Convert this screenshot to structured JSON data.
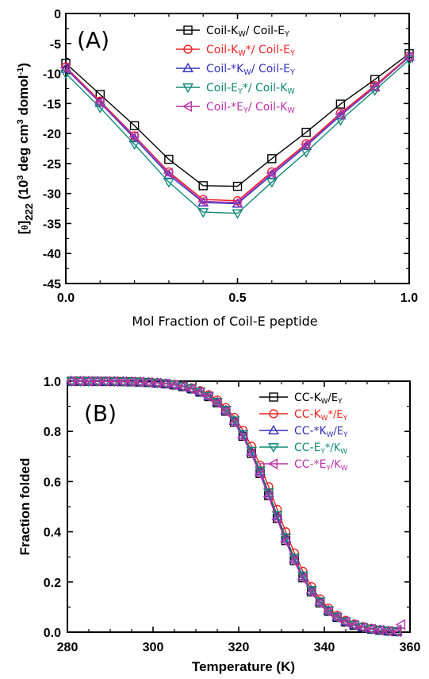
{
  "chart_data": [
    {
      "type": "line",
      "panel_label": "(A)",
      "xlabel": "Mol  Fraction of Coil-E peptide",
      "ylabel": "[θ]222 (10³ deg cm³ domol⁻¹)",
      "ylabel_parts": {
        "a": "[",
        "b": "θ",
        "c": "]",
        "sub": "222",
        "d": " (10",
        "sup1": "3",
        "e": " deg cm",
        "sup2": "3",
        "f": " domol",
        "sup3": "-1",
        "g": ")"
      },
      "xlim": [
        0.0,
        1.0
      ],
      "ylim": [
        -45,
        0
      ],
      "xticks": [
        0.0,
        0.5,
        1.0
      ],
      "xtick_labels": [
        "0.0",
        "0.5",
        "1.0"
      ],
      "yticks": [
        0,
        -5,
        -10,
        -15,
        -20,
        -25,
        -30,
        -35,
        -40,
        -45
      ],
      "ytick_labels": [
        "0",
        "-5",
        "-10",
        "-15",
        "-20",
        "-25",
        "-30",
        "-35",
        "-40",
        "-45"
      ],
      "legend_position": "top-right",
      "x": [
        0.0,
        0.1,
        0.2,
        0.3,
        0.4,
        0.5,
        0.6,
        0.7,
        0.8,
        0.9,
        1.0
      ],
      "series": [
        {
          "name": "Coil-Kw/ Coil-EY",
          "legend": {
            "a": "Coil-K",
            "sub1": "W",
            "b": "/ Coil-E",
            "sub2": "Y"
          },
          "color": "#000000",
          "marker": "square",
          "values": [
            -8.3,
            -13.5,
            -18.7,
            -24.3,
            -28.7,
            -28.8,
            -24.2,
            -19.8,
            -15.1,
            -11.0,
            -6.7
          ]
        },
        {
          "name": "Coil-Kw*/ Coil-EY",
          "legend": {
            "a": "Coil-K",
            "sub1": "W",
            "b": "*/ Coil-E",
            "sub2": "Y"
          },
          "color": "#ee2222",
          "marker": "circle",
          "values": [
            -8.9,
            -14.6,
            -20.4,
            -26.4,
            -31.0,
            -31.2,
            -26.4,
            -21.7,
            -16.6,
            -12.0,
            -7.1
          ]
        },
        {
          "name": "Coil-*Kw/ Coil-EY",
          "legend": {
            "a": "Coil-*K",
            "sub1": "W",
            "b": "/ Coil-E",
            "sub2": "Y"
          },
          "color": "#3333bb",
          "marker": "triangle-up",
          "values": [
            -9.2,
            -14.9,
            -20.8,
            -26.9,
            -31.5,
            -31.7,
            -26.9,
            -22.1,
            -17.0,
            -12.3,
            -7.2
          ]
        },
        {
          "name": "Coil-EY*/ Coil-Kw",
          "legend": {
            "a": "Coil-E",
            "sub1": "Y",
            "b": "*/ Coil-K",
            "sub2": "W"
          },
          "color": "#118877",
          "marker": "triangle-down",
          "values": [
            -10.0,
            -15.7,
            -21.8,
            -28.1,
            -33.1,
            -33.3,
            -28.1,
            -23.1,
            -17.8,
            -12.8,
            -7.7
          ]
        },
        {
          "name": "Coil-*EY/ Coil-Kw",
          "legend": {
            "a": "Coil-*E",
            "sub1": "Y",
            "b": "/ Coil-K",
            "sub2": "W"
          },
          "color": "#bb33aa",
          "marker": "triangle-left",
          "values": [
            -9.0,
            -14.8,
            -20.5,
            -26.6,
            -31.3,
            -31.5,
            -26.6,
            -21.9,
            -16.8,
            -12.2,
            -7.3
          ]
        }
      ]
    },
    {
      "type": "line",
      "panel_label": "(B)",
      "xlabel": "Temperature (K)",
      "ylabel": "Fraction folded",
      "xlim": [
        280,
        360
      ],
      "ylim": [
        0.0,
        1.0
      ],
      "xticks": [
        280,
        300,
        320,
        340,
        360
      ],
      "xtick_labels": [
        "280",
        "300",
        "320",
        "340",
        "360"
      ],
      "yticks": [
        0.0,
        0.2,
        0.4,
        0.6,
        0.8,
        1.0
      ],
      "ytick_labels": [
        "0.0",
        "0.2",
        "0.4",
        "0.6",
        "0.8",
        "1.0"
      ],
      "legend_position": "top-right",
      "curve": {
        "midpoint_K": 328,
        "width_K": 5.5
      },
      "series": [
        {
          "name": "CC-Kw/EY",
          "legend": {
            "a": "CC-K",
            "sub1": "W",
            "b": "/E",
            "sub2": "Y"
          },
          "color": "#000000",
          "marker": "square",
          "x_start": 281,
          "x_end": 357,
          "step": 2,
          "shift": 0.0
        },
        {
          "name": "CC-Kw*/EY",
          "legend": {
            "a": "CC-K",
            "sub1": "W",
            "b": "*/E",
            "sub2": "Y"
          },
          "color": "#ee2222",
          "marker": "circle",
          "x_start": 281,
          "x_end": 357,
          "step": 2,
          "shift": 0.8
        },
        {
          "name": "CC-*Kw/EY",
          "legend": {
            "a": "CC-*K",
            "sub1": "W",
            "b": "/E",
            "sub2": "Y"
          },
          "color": "#3333bb",
          "marker": "triangle-up",
          "x_start": 281,
          "x_end": 357,
          "step": 2,
          "shift": 0.2
        },
        {
          "name": "CC-EY*/Kw",
          "legend": {
            "a": "CC-E",
            "sub1": "Y",
            "b": "*/K",
            "sub2": "W"
          },
          "color": "#118877",
          "marker": "triangle-down",
          "x_start": 281,
          "x_end": 357,
          "step": 2,
          "shift": 0.3
        },
        {
          "name": "CC-*EY/Kw",
          "legend": {
            "a": "CC-*E",
            "sub1": "Y",
            "b": "/K",
            "sub2": "W"
          },
          "color": "#bb33aa",
          "marker": "triangle-left",
          "x_start": 281,
          "x_end": 358,
          "step": 2,
          "shift": -0.1,
          "last_value": 0.03
        }
      ]
    }
  ]
}
